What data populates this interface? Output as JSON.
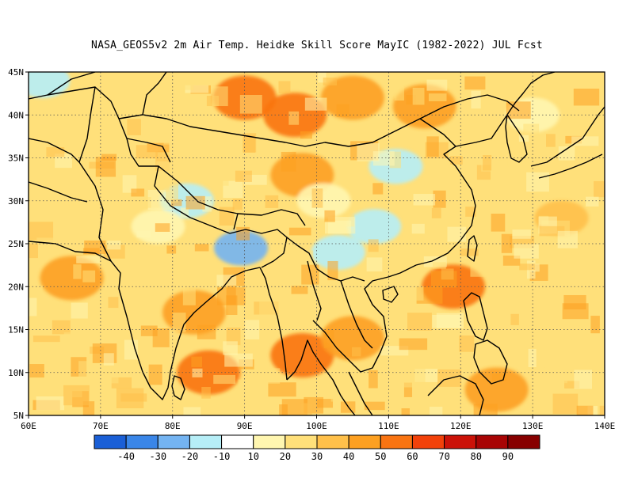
{
  "title": "NASA_GEOS5v2  2m Air Temp. Heidke Skill Score MayIC (1982-2022) JUL Fcst",
  "map": {
    "lon_range": [
      60,
      140
    ],
    "lat_range": [
      5,
      45
    ],
    "x_ticks": [
      "60E",
      "70E",
      "80E",
      "90E",
      "100E",
      "110E",
      "120E",
      "130E",
      "140E"
    ],
    "y_ticks": [
      "5N",
      "10N",
      "15N",
      "20N",
      "25N",
      "30N",
      "35N",
      "40N",
      "45N"
    ],
    "grid_lines": "dotted"
  },
  "colorbar": {
    "colors": [
      "#1a5fd6",
      "#3a86e8",
      "#74b4f2",
      "#b6eef7",
      "#ffffff",
      "#fff6b0",
      "#ffe07a",
      "#ffc04a",
      "#fda021",
      "#f97412",
      "#f2410a",
      "#cb1208",
      "#a80404",
      "#870000"
    ],
    "labels": [
      "-40",
      "-30",
      "-20",
      "-10",
      "10",
      "20",
      "30",
      "40",
      "50",
      "60",
      "70",
      "80",
      "90"
    ]
  },
  "chart_data": {
    "type": "heatmap",
    "title": "NASA_GEOS5v2  2m Air Temp. Heidke Skill Score MayIC (1982-2022) JUL Fcst",
    "x_range_lon": [
      60,
      140
    ],
    "y_range_lat": [
      5,
      45
    ],
    "levels": [
      -40,
      -30,
      -20,
      -10,
      10,
      20,
      30,
      40,
      50,
      60,
      70,
      80,
      90
    ],
    "regions": [
      {
        "lon": 89.5,
        "lat": 24.5,
        "value": -30
      },
      {
        "lon": 82,
        "lat": 30,
        "value": -20
      },
      {
        "lon": 62,
        "lat": 44,
        "value": -20
      },
      {
        "lon": 103,
        "lat": 24,
        "value": -15
      },
      {
        "lon": 108,
        "lat": 27,
        "value": -15
      },
      {
        "lon": 111,
        "lat": 34,
        "value": -20
      },
      {
        "lon": 90,
        "lat": 42,
        "value": 50
      },
      {
        "lon": 97,
        "lat": 40,
        "value": 50
      },
      {
        "lon": 98,
        "lat": 33,
        "value": 40
      },
      {
        "lon": 105,
        "lat": 42,
        "value": 45
      },
      {
        "lon": 115,
        "lat": 41,
        "value": 40
      },
      {
        "lon": 66,
        "lat": 21,
        "value": 40
      },
      {
        "lon": 83,
        "lat": 17,
        "value": 45
      },
      {
        "lon": 85,
        "lat": 10,
        "value": 50
      },
      {
        "lon": 98,
        "lat": 12,
        "value": 50
      },
      {
        "lon": 119,
        "lat": 20,
        "value": 50
      },
      {
        "lon": 125,
        "lat": 8,
        "value": 40
      },
      {
        "lon": 105,
        "lat": 14,
        "value": 45
      },
      {
        "lon": 134,
        "lat": 28,
        "value": 30
      },
      {
        "lon": 101,
        "lat": 30,
        "value": 10
      },
      {
        "lon": 78,
        "lat": 27,
        "value": 10
      },
      {
        "lon": 130,
        "lat": 40,
        "value": 10
      }
    ]
  }
}
